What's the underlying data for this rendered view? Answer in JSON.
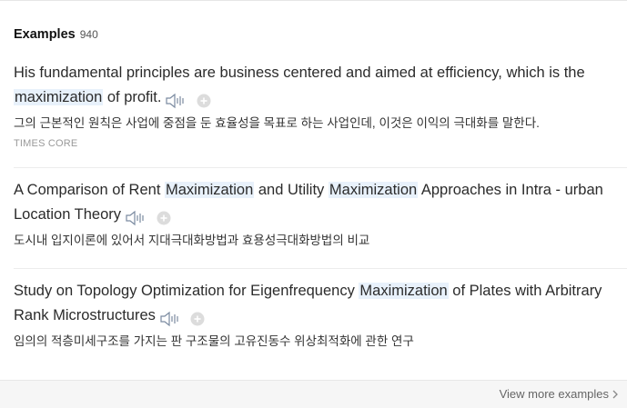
{
  "header": {
    "title": "Examples",
    "count": "940"
  },
  "examples": [
    {
      "en_parts": [
        "His fundamental principles are business centered and aimed at efficiency, which is the ",
        "maximization",
        " of profit."
      ],
      "ko": "그의 근본적인 원칙은 사업에 중점을 둔 효율성을 목표로 하는 사업인데, 이것은 이익의 극대화를 말한다.",
      "source": "TIMES CORE"
    },
    {
      "en_parts": [
        "A Comparison of Rent ",
        "Maximization",
        " and Utility ",
        "Maximization",
        " Approaches in Intra - urban Location Theory"
      ],
      "ko": "도시내 입지이론에 있어서 지대극대화방법과 효용성극대화방법의 비교"
    },
    {
      "en_parts": [
        "Study on Topology Optimization for Eigenfrequency ",
        "Maximization",
        " of Plates with Arbitrary Rank Microstructures"
      ],
      "ko": "임의의 적층미세구조를 가지는 판 구조물의 고유진동수 위상최적화에 관한 연구"
    }
  ],
  "footer": {
    "view_more": "View more examples"
  },
  "icons": {
    "speaker": "speaker-icon",
    "add": "plus-circle-icon",
    "chevron": "chevron-right-icon"
  }
}
